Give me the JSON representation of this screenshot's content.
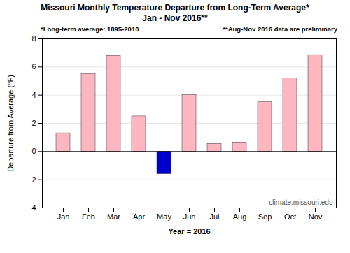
{
  "chart_data": {
    "type": "bar",
    "title": "Missouri Monthly Temperature Departure from Long-Term Average*",
    "subtitle": "Jan - Nov 2016**",
    "x_label": "Year = 2016",
    "y_label": "Departure from Average (°F)",
    "categories": [
      "Jan",
      "Feb",
      "Mar",
      "Apr",
      "May",
      "Jun",
      "Jul",
      "Aug",
      "Sep",
      "Oct",
      "Nov"
    ],
    "values": [
      1.3,
      5.5,
      6.8,
      2.5,
      -1.6,
      4.0,
      0.55,
      0.65,
      3.5,
      5.2,
      6.85
    ],
    "colors": [
      "#FFB6C1",
      "#FFB6C1",
      "#FFB6C1",
      "#FFB6C1",
      "#0000CC",
      "#FFB6C1",
      "#FFB6C1",
      "#FFB6C1",
      "#FFB6C1",
      "#FFB6C1",
      "#FFB6C1"
    ],
    "ylim": [
      -4.0,
      8.0
    ],
    "yticks": [
      -4.0,
      -2.0,
      0.0,
      2.0,
      4.0,
      6.0,
      8.0
    ],
    "grid": true,
    "annotations": [
      "*Long-term  average: 1895-2010",
      "**Aug-Nov 2016 data are preliminary",
      "climate.missouri.edu"
    ]
  }
}
